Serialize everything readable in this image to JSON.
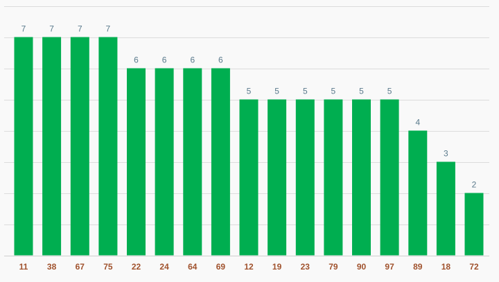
{
  "chart_data": {
    "type": "bar",
    "categories": [
      "11",
      "38",
      "67",
      "75",
      "22",
      "24",
      "64",
      "69",
      "12",
      "19",
      "23",
      "79",
      "90",
      "97",
      "89",
      "18",
      "72"
    ],
    "values": [
      7,
      7,
      7,
      7,
      6,
      6,
      6,
      6,
      5,
      5,
      5,
      5,
      5,
      5,
      4,
      3,
      2
    ],
    "ylim": [
      0,
      8
    ],
    "grid": true,
    "legend": "none",
    "colors": {
      "bar": "#00ae50",
      "value_label": "#5a7a8c",
      "tick_label": "#a0522d"
    }
  }
}
